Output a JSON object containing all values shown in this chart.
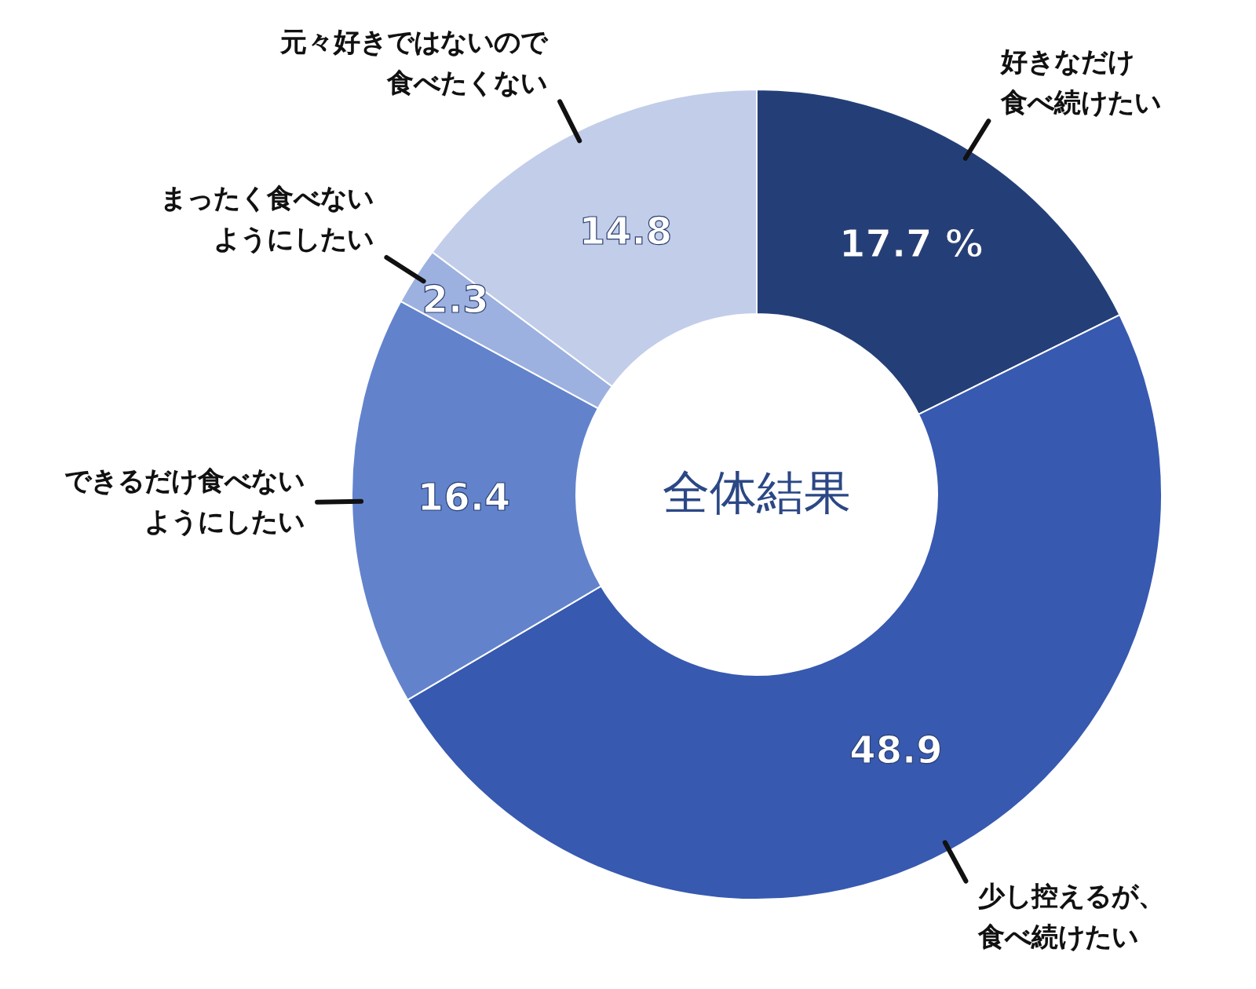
{
  "chart_data": {
    "type": "donut",
    "title": "全体結果",
    "categories": [
      "好きなだけ食べ続けたい",
      "少し控えるが、食べ続けたい",
      "できるだけ食べないようにしたい",
      "まったく食べないようにしたい",
      "元々好きではないので食べたくない"
    ],
    "values": [
      17.7,
      48.9,
      16.4,
      2.3,
      14.8
    ],
    "colors": [
      "#243f78",
      "#3759b0",
      "#6283cc",
      "#9cb1e0",
      "#c2cdea"
    ],
    "value_labels": [
      "17.7 %",
      "48.9",
      "16.4",
      "2.3",
      "14.8"
    ]
  }
}
